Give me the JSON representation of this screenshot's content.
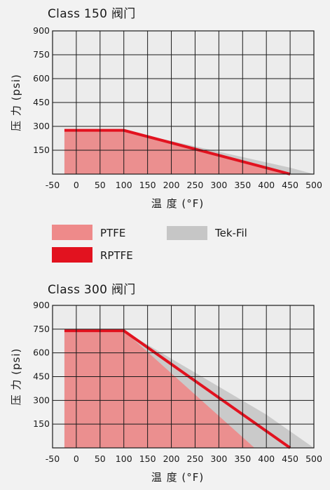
{
  "colors": {
    "background": "#f2f2f2",
    "PTFE": "#ee8a8a",
    "RPTFE": "#e2121f",
    "Tek-Fil": "#c6c6c6",
    "grid": "#1a1a1a"
  },
  "legend": {
    "ptfe": "PTFE",
    "tekfil": "Tek-Fil",
    "rptfe": "RPTFE"
  },
  "chart_data": [
    {
      "type": "area",
      "title": "Class 150 阀门",
      "xlabel": "温 度 (°F)",
      "ylabel": "压 力 (psi)",
      "xlim": [
        -50,
        500
      ],
      "ylim": [
        0,
        900
      ],
      "x_ticks": [
        "-50",
        "0",
        "50",
        "100",
        "150",
        "200",
        "250",
        "300",
        "350",
        "400",
        "450",
        "500"
      ],
      "y_ticks": [
        "150",
        "300",
        "450",
        "600",
        "750",
        "900"
      ],
      "grid": true,
      "series": [
        {
          "name": "Tek-Fil",
          "kind": "area",
          "x": [
            -25,
            100,
            450,
            500
          ],
          "y": [
            275,
            275,
            40,
            0
          ]
        },
        {
          "name": "PTFE",
          "kind": "area",
          "x": [
            -25,
            100,
            440
          ],
          "y": [
            275,
            275,
            0
          ]
        },
        {
          "name": "RPTFE",
          "kind": "line",
          "x": [
            -25,
            100,
            450
          ],
          "y": [
            275,
            275,
            0
          ]
        }
      ]
    },
    {
      "type": "area",
      "title": "Class 300 阀门",
      "xlabel": "温 度 (°F)",
      "ylabel": "压 力 (psi)",
      "xlim": [
        -50,
        500
      ],
      "ylim": [
        0,
        900
      ],
      "x_ticks": [
        "-50",
        "0",
        "50",
        "100",
        "150",
        "200",
        "250",
        "300",
        "350",
        "400",
        "450",
        "500"
      ],
      "y_ticks": [
        "150",
        "300",
        "450",
        "600",
        "750",
        "900"
      ],
      "grid": true,
      "series": [
        {
          "name": "Tek-Fil",
          "kind": "area",
          "x": [
            -25,
            100,
            400,
            500
          ],
          "y": [
            740,
            740,
            210,
            0
          ]
        },
        {
          "name": "PTFE",
          "kind": "area",
          "x": [
            -25,
            100,
            375
          ],
          "y": [
            740,
            740,
            0
          ]
        },
        {
          "name": "RPTFE",
          "kind": "line",
          "x": [
            -25,
            100,
            450
          ],
          "y": [
            740,
            740,
            0
          ]
        }
      ]
    }
  ]
}
